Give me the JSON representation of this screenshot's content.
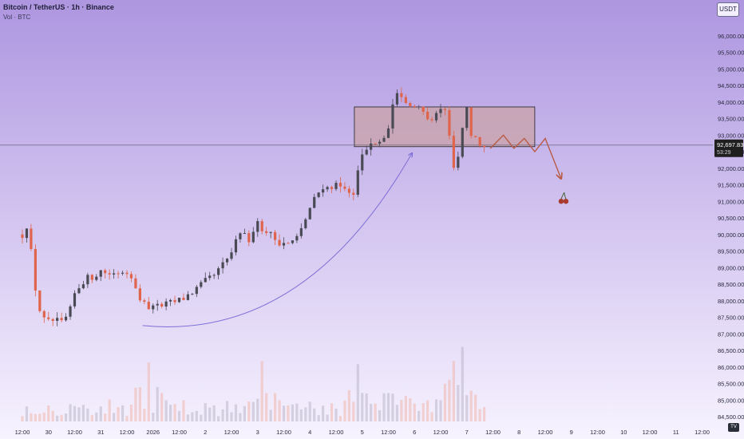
{
  "header": {
    "symbol_title": "Bitcoin / TetherUS · 1h · Binance",
    "volume_label": "Vol · BTC",
    "currency_button": "USDT"
  },
  "price_label": {
    "price": "92,697.83",
    "countdown": "53:29"
  },
  "colors": {
    "background_top": "#ae96e0",
    "background_bottom": "#f7f3ff",
    "bull_candle": "#4a4a55",
    "bear_candle": "#e0644c",
    "zone_fill": "#c9a3a8",
    "projection": "#b85c46",
    "arc": "#7e6fd6",
    "price_tag": "#1f1f1f"
  },
  "tv_logo": "TV",
  "chart_data": {
    "type": "candlestick",
    "title": "Bitcoin / TetherUS · 1h · Binance",
    "ylim": [
      84500,
      96500
    ],
    "y_ticks": [
      "96,000.00",
      "95,500.00",
      "95,000.00",
      "94,500.00",
      "94,000.00",
      "93,500.00",
      "93,000.00",
      "92,500.00",
      "92,000.00",
      "91,500.00",
      "91,000.00",
      "90,500.00",
      "90,000.00",
      "89,500.00",
      "89,000.00",
      "88,500.00",
      "88,000.00",
      "87,500.00",
      "87,000.00",
      "86,500.00",
      "86,000.00",
      "85,500.00",
      "85,000.00",
      "84,500.00"
    ],
    "y_tick_values": [
      96000,
      95500,
      95000,
      94500,
      94000,
      93500,
      93000,
      92500,
      92000,
      91500,
      91000,
      90500,
      90000,
      89500,
      89000,
      88500,
      88000,
      87500,
      87000,
      86500,
      86000,
      85500,
      85000,
      84500
    ],
    "x_ticks": [
      {
        "label": "12:00",
        "t": 0.0
      },
      {
        "label": "30",
        "t": 0.5
      },
      {
        "label": "12:00",
        "t": 1.0
      },
      {
        "label": "31",
        "t": 1.5
      },
      {
        "label": "12:00",
        "t": 2.0
      },
      {
        "label": "2026",
        "t": 2.5
      },
      {
        "label": "12:00",
        "t": 3.0
      },
      {
        "label": "2",
        "t": 3.5
      },
      {
        "label": "12:00",
        "t": 4.0
      },
      {
        "label": "3",
        "t": 4.5
      },
      {
        "label": "12:00",
        "t": 5.0
      },
      {
        "label": "4",
        "t": 5.5
      },
      {
        "label": "12:00",
        "t": 6.0
      },
      {
        "label": "5",
        "t": 6.5
      },
      {
        "label": "12:00",
        "t": 7.0
      },
      {
        "label": "6",
        "t": 7.5
      },
      {
        "label": "12:00",
        "t": 8.0
      },
      {
        "label": "7",
        "t": 8.5
      },
      {
        "label": "12:00",
        "t": 9.0
      },
      {
        "label": "8",
        "t": 9.5
      },
      {
        "label": "12:00",
        "t": 10.0
      },
      {
        "label": "9",
        "t": 10.5
      },
      {
        "label": "12:00",
        "t": 11.0
      },
      {
        "label": "10",
        "t": 11.5
      },
      {
        "label": "12:00",
        "t": 12.0
      },
      {
        "label": "11",
        "t": 12.5
      },
      {
        "label": "12:00",
        "t": 13.0
      }
    ],
    "price_path_keypoints": [
      [
        0.0,
        90000
      ],
      [
        0.05,
        90400
      ],
      [
        0.12,
        90200
      ],
      [
        0.22,
        88600
      ],
      [
        0.35,
        87600
      ],
      [
        0.45,
        87300
      ],
      [
        0.6,
        87400
      ],
      [
        0.75,
        87300
      ],
      [
        0.9,
        87600
      ],
      [
        1.0,
        88200
      ],
      [
        1.15,
        88600
      ],
      [
        1.3,
        88700
      ],
      [
        1.5,
        88900
      ],
      [
        1.7,
        88800
      ],
      [
        1.9,
        88900
      ],
      [
        2.05,
        88900
      ],
      [
        2.15,
        88600
      ],
      [
        2.25,
        87900
      ],
      [
        2.4,
        87800
      ],
      [
        2.6,
        87800
      ],
      [
        2.8,
        87900
      ],
      [
        3.0,
        88000
      ],
      [
        3.2,
        88200
      ],
      [
        3.45,
        88500
      ],
      [
        3.7,
        88800
      ],
      [
        3.95,
        89300
      ],
      [
        4.1,
        89800
      ],
      [
        4.25,
        90100
      ],
      [
        4.35,
        89800
      ],
      [
        4.5,
        90300
      ],
      [
        4.7,
        90100
      ],
      [
        4.9,
        89800
      ],
      [
        5.05,
        89700
      ],
      [
        5.2,
        90000
      ],
      [
        5.4,
        90300
      ],
      [
        5.6,
        91200
      ],
      [
        5.75,
        91300
      ],
      [
        5.9,
        91500
      ],
      [
        6.05,
        91400
      ],
      [
        6.2,
        91300
      ],
      [
        6.35,
        91300
      ],
      [
        6.42,
        91900
      ],
      [
        6.5,
        92400
      ],
      [
        6.65,
        92700
      ],
      [
        6.8,
        92700
      ],
      [
        6.95,
        93000
      ],
      [
        7.05,
        93600
      ],
      [
        7.15,
        94400
      ],
      [
        7.25,
        94200
      ],
      [
        7.35,
        93900
      ],
      [
        7.5,
        93800
      ],
      [
        7.65,
        93700
      ],
      [
        7.8,
        93500
      ],
      [
        7.95,
        93800
      ],
      [
        8.1,
        93700
      ],
      [
        8.2,
        92500
      ],
      [
        8.28,
        91900
      ],
      [
        8.35,
        92400
      ],
      [
        8.42,
        93300
      ],
      [
        8.5,
        93800
      ],
      [
        8.6,
        92800
      ],
      [
        8.72,
        92900
      ],
      [
        8.8,
        92600
      ],
      [
        8.85,
        92700
      ]
    ],
    "volume_spikes": [
      2.4,
      4.6,
      6.45,
      7.2,
      8.3,
      8.45
    ],
    "annotations": {
      "resistance_zone": {
        "t_start": 6.35,
        "t_end": 9.8,
        "price_low": 92650,
        "price_high": 93850
      },
      "current_price_line": 92697.83,
      "arc": {
        "from": [
          2.3,
          87250
        ],
        "to": [
          7.45,
          92450
        ]
      },
      "projection_path": [
        [
          8.95,
          92600
        ],
        [
          9.2,
          93000
        ],
        [
          9.4,
          92600
        ],
        [
          9.6,
          92900
        ],
        [
          9.8,
          92500
        ],
        [
          10.0,
          92900
        ],
        [
          10.3,
          91700
        ]
      ],
      "target_icon": {
        "t": 10.35,
        "price": 91050
      }
    }
  }
}
